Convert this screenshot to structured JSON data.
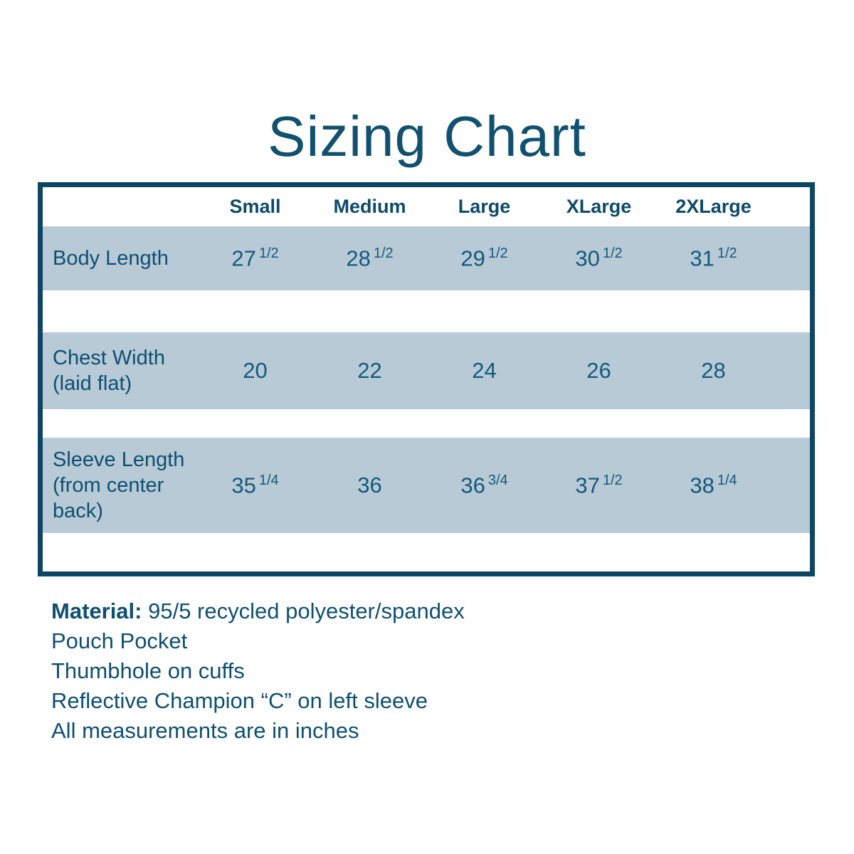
{
  "title": "Sizing Chart",
  "colors": {
    "accent_text": "#0e4f72",
    "table_border": "#0d4665",
    "row_band": "#b7cad6",
    "header_text": "#0e4a6b"
  },
  "table": {
    "columns": [
      "Small",
      "Medium",
      "Large",
      "XLarge",
      "2XLarge"
    ],
    "rows": [
      {
        "label": "Body Length",
        "cells": [
          {
            "whole": "27",
            "frac": "1/2"
          },
          {
            "whole": "28",
            "frac": "1/2"
          },
          {
            "whole": "29",
            "frac": "1/2"
          },
          {
            "whole": "30",
            "frac": "1/2"
          },
          {
            "whole": "31",
            "frac": "1/2"
          }
        ]
      },
      {
        "label": "Chest Width\n(laid flat)",
        "cells": [
          {
            "whole": "20",
            "frac": ""
          },
          {
            "whole": "22",
            "frac": ""
          },
          {
            "whole": "24",
            "frac": ""
          },
          {
            "whole": "26",
            "frac": ""
          },
          {
            "whole": "28",
            "frac": ""
          }
        ]
      },
      {
        "label": "Sleeve Length\n(from center\nback)",
        "cells": [
          {
            "whole": "35",
            "frac": "1/4"
          },
          {
            "whole": "36",
            "frac": ""
          },
          {
            "whole": "36",
            "frac": "3/4"
          },
          {
            "whole": "37",
            "frac": "1/2"
          },
          {
            "whole": "38",
            "frac": "1/4"
          }
        ]
      }
    ]
  },
  "notes": [
    {
      "bold": "Material:",
      "text": " 95/5 recycled polyester/spandex"
    },
    {
      "bold": "",
      "text": "Pouch Pocket"
    },
    {
      "bold": "",
      "text": "Thumbhole on cuffs"
    },
    {
      "bold": "",
      "text": "Reflective Champion “C” on left sleeve"
    },
    {
      "bold": "",
      "text": "All measurements are in inches"
    }
  ],
  "chart_data": {
    "type": "table",
    "title": "Sizing Chart",
    "columns": [
      "",
      "Small",
      "Medium",
      "Large",
      "XLarge",
      "2XLarge"
    ],
    "rows": [
      [
        "Body Length",
        "27 1/2",
        "28 1/2",
        "29 1/2",
        "30 1/2",
        "31 1/2"
      ],
      [
        "Chest Width (laid flat)",
        "20",
        "22",
        "24",
        "26",
        "28"
      ],
      [
        "Sleeve Length (from center back)",
        "35 1/4",
        "36",
        "36 3/4",
        "37 1/2",
        "38 1/4"
      ]
    ],
    "footnotes": [
      "Material: 95/5 recycled polyester/spandex",
      "Pouch Pocket",
      "Thumbhole on cuffs",
      "Reflective Champion “C” on left sleeve",
      "All measurements are in inches"
    ],
    "units": "inches"
  }
}
